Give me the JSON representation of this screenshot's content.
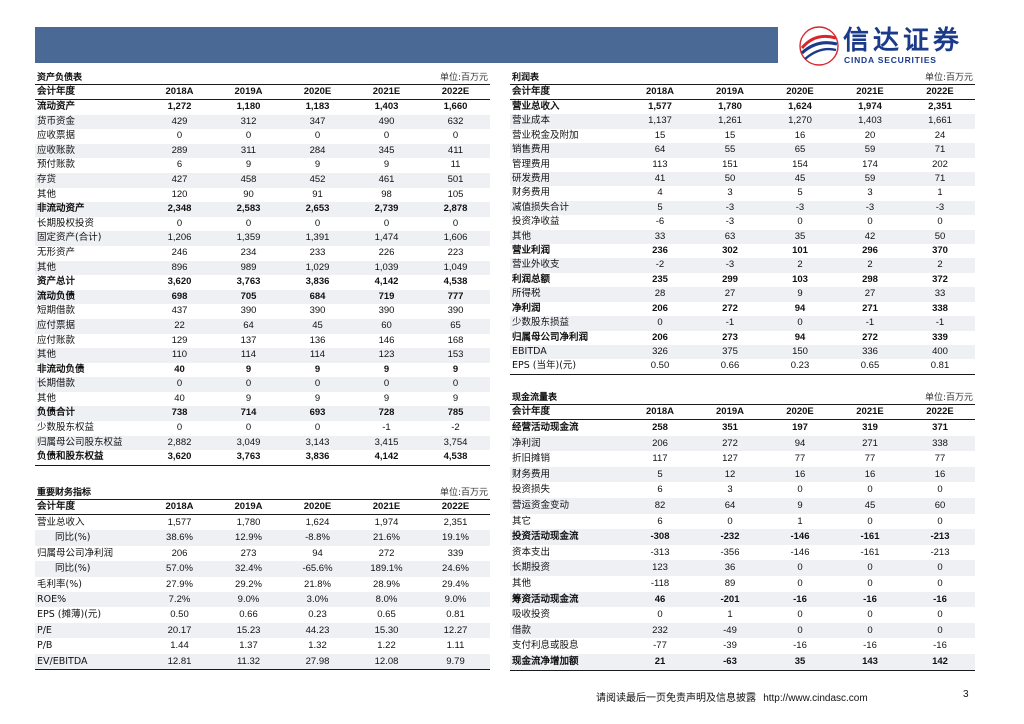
{
  "header": {
    "bar_color": "#4a6a95",
    "brand_color": "#1b3a8a",
    "logo_cn": "信达证券",
    "logo_en": "CINDA SECURITIES"
  },
  "balance_sheet": {
    "title": "资产负债表",
    "unit": "单位:百万元",
    "columns": [
      "会计年度",
      "2018A",
      "2019A",
      "2020E",
      "2021E",
      "2022E"
    ],
    "rows": [
      {
        "label": "流动资产",
        "values": [
          "1,272",
          "1,180",
          "1,183",
          "1,403",
          "1,660"
        ],
        "bold": true
      },
      {
        "label": "货币资金",
        "values": [
          "429",
          "312",
          "347",
          "490",
          "632"
        ]
      },
      {
        "label": "应收票据",
        "values": [
          "0",
          "0",
          "0",
          "0",
          "0"
        ]
      },
      {
        "label": "应收账款",
        "values": [
          "289",
          "311",
          "284",
          "345",
          "411"
        ]
      },
      {
        "label": "预付账款",
        "values": [
          "6",
          "9",
          "9",
          "9",
          "11"
        ]
      },
      {
        "label": "存货",
        "values": [
          "427",
          "458",
          "452",
          "461",
          "501"
        ]
      },
      {
        "label": "其他",
        "values": [
          "120",
          "90",
          "91",
          "98",
          "105"
        ]
      },
      {
        "label": "非流动资产",
        "values": [
          "2,348",
          "2,583",
          "2,653",
          "2,739",
          "2,878"
        ],
        "bold": true
      },
      {
        "label": "长期股权投资",
        "values": [
          "0",
          "0",
          "0",
          "0",
          "0"
        ]
      },
      {
        "label": "固定资产(合计)",
        "values": [
          "1,206",
          "1,359",
          "1,391",
          "1,474",
          "1,606"
        ]
      },
      {
        "label": "无形资产",
        "values": [
          "246",
          "234",
          "233",
          "226",
          "223"
        ]
      },
      {
        "label": "其他",
        "values": [
          "896",
          "989",
          "1,029",
          "1,039",
          "1,049"
        ]
      },
      {
        "label": "资产总计",
        "values": [
          "3,620",
          "3,763",
          "3,836",
          "4,142",
          "4,538"
        ],
        "bold": true
      },
      {
        "label": "流动负债",
        "values": [
          "698",
          "705",
          "684",
          "719",
          "777"
        ],
        "bold": true
      },
      {
        "label": "短期借款",
        "values": [
          "437",
          "390",
          "390",
          "390",
          "390"
        ]
      },
      {
        "label": "应付票据",
        "values": [
          "22",
          "64",
          "45",
          "60",
          "65"
        ]
      },
      {
        "label": "应付账款",
        "values": [
          "129",
          "137",
          "136",
          "146",
          "168"
        ]
      },
      {
        "label": "其他",
        "values": [
          "110",
          "114",
          "114",
          "123",
          "153"
        ]
      },
      {
        "label": "非流动负债",
        "values": [
          "40",
          "9",
          "9",
          "9",
          "9"
        ],
        "bold": true
      },
      {
        "label": "长期借款",
        "values": [
          "0",
          "0",
          "0",
          "0",
          "0"
        ]
      },
      {
        "label": "其他",
        "values": [
          "40",
          "9",
          "9",
          "9",
          "9"
        ]
      },
      {
        "label": "负债合计",
        "values": [
          "738",
          "714",
          "693",
          "728",
          "785"
        ],
        "bold": true
      },
      {
        "label": "少数股东权益",
        "values": [
          "0",
          "0",
          "0",
          "-1",
          "-2"
        ]
      },
      {
        "label": "归属母公司股东权益",
        "values": [
          "2,882",
          "3,049",
          "3,143",
          "3,415",
          "3,754"
        ]
      },
      {
        "label": "负债和股东权益",
        "values": [
          "3,620",
          "3,763",
          "3,836",
          "4,142",
          "4,538"
        ],
        "bold": true
      }
    ]
  },
  "key_metrics": {
    "title": "重要财务指标",
    "unit": "单位:百万元",
    "columns": [
      "会计年度",
      "2018A",
      "2019A",
      "2020E",
      "2021E",
      "2022E"
    ],
    "rows": [
      {
        "label": "营业总收入",
        "values": [
          "1,577",
          "1,780",
          "1,624",
          "1,974",
          "2,351"
        ]
      },
      {
        "label": "同比(%)",
        "values": [
          "38.6%",
          "12.9%",
          "-8.8%",
          "21.6%",
          "19.1%"
        ],
        "indent": true
      },
      {
        "label": "归属母公司净利润",
        "values": [
          "206",
          "273",
          "94",
          "272",
          "339"
        ]
      },
      {
        "label": "同比(%)",
        "values": [
          "57.0%",
          "32.4%",
          "-65.6%",
          "189.1%",
          "24.6%"
        ],
        "indent": true
      },
      {
        "label": "毛利率(%)",
        "values": [
          "27.9%",
          "29.2%",
          "21.8%",
          "28.9%",
          "29.4%"
        ]
      },
      {
        "label": "ROE%",
        "values": [
          "7.2%",
          "9.0%",
          "3.0%",
          "8.0%",
          "9.0%"
        ]
      },
      {
        "label": "EPS (摊薄)(元)",
        "values": [
          "0.50",
          "0.66",
          "0.23",
          "0.65",
          "0.81"
        ]
      },
      {
        "label": "P/E",
        "values": [
          "20.17",
          "15.23",
          "44.23",
          "15.30",
          "12.27"
        ]
      },
      {
        "label": "P/B",
        "values": [
          "1.44",
          "1.37",
          "1.32",
          "1.22",
          "1.11"
        ]
      },
      {
        "label": "EV/EBITDA",
        "values": [
          "12.81",
          "11.32",
          "27.98",
          "12.08",
          "9.79"
        ]
      }
    ]
  },
  "income_statement": {
    "title": "利润表",
    "unit": "单位:百万元",
    "columns": [
      "会计年度",
      "2018A",
      "2019A",
      "2020E",
      "2021E",
      "2022E"
    ],
    "rows": [
      {
        "label": "营业总收入",
        "values": [
          "1,577",
          "1,780",
          "1,624",
          "1,974",
          "2,351"
        ],
        "bold": true
      },
      {
        "label": "营业成本",
        "values": [
          "1,137",
          "1,261",
          "1,270",
          "1,403",
          "1,661"
        ]
      },
      {
        "label": "营业税金及附加",
        "values": [
          "15",
          "15",
          "16",
          "20",
          "24"
        ]
      },
      {
        "label": "销售费用",
        "values": [
          "64",
          "55",
          "65",
          "59",
          "71"
        ]
      },
      {
        "label": "管理费用",
        "values": [
          "113",
          "151",
          "154",
          "174",
          "202"
        ]
      },
      {
        "label": "研发费用",
        "values": [
          "41",
          "50",
          "45",
          "59",
          "71"
        ]
      },
      {
        "label": "财务费用",
        "values": [
          "4",
          "3",
          "5",
          "3",
          "1"
        ]
      },
      {
        "label": "减值损失合计",
        "values": [
          "5",
          "-3",
          "-3",
          "-3",
          "-3"
        ]
      },
      {
        "label": "投资净收益",
        "values": [
          "-6",
          "-3",
          "0",
          "0",
          "0"
        ]
      },
      {
        "label": "其他",
        "values": [
          "33",
          "63",
          "35",
          "42",
          "50"
        ]
      },
      {
        "label": "营业利润",
        "values": [
          "236",
          "302",
          "101",
          "296",
          "370"
        ],
        "bold": true
      },
      {
        "label": "营业外收支",
        "values": [
          "-2",
          "-3",
          "2",
          "2",
          "2"
        ]
      },
      {
        "label": "利润总额",
        "values": [
          "235",
          "299",
          "103",
          "298",
          "372"
        ],
        "bold": true
      },
      {
        "label": "所得税",
        "values": [
          "28",
          "27",
          "9",
          "27",
          "33"
        ]
      },
      {
        "label": "净利润",
        "values": [
          "206",
          "272",
          "94",
          "271",
          "338"
        ],
        "bold": true
      },
      {
        "label": "少数股东损益",
        "values": [
          "0",
          "-1",
          "0",
          "-1",
          "-1"
        ]
      },
      {
        "label": "归属母公司净利润",
        "values": [
          "206",
          "273",
          "94",
          "272",
          "339"
        ],
        "bold": true
      },
      {
        "label": "EBITDA",
        "values": [
          "326",
          "375",
          "150",
          "336",
          "400"
        ]
      },
      {
        "label": "EPS (当年)(元)",
        "values": [
          "0.50",
          "0.66",
          "0.23",
          "0.65",
          "0.81"
        ]
      }
    ]
  },
  "cash_flow": {
    "title": "现金流量表",
    "unit": "单位:百万元",
    "columns": [
      "会计年度",
      "2018A",
      "2019A",
      "2020E",
      "2021E",
      "2022E"
    ],
    "rows": [
      {
        "label": "经营活动现金流",
        "values": [
          "258",
          "351",
          "197",
          "319",
          "371"
        ],
        "bold": true
      },
      {
        "label": "净利润",
        "values": [
          "206",
          "272",
          "94",
          "271",
          "338"
        ]
      },
      {
        "label": "折旧摊销",
        "values": [
          "117",
          "127",
          "77",
          "77",
          "77"
        ]
      },
      {
        "label": "财务费用",
        "values": [
          "5",
          "12",
          "16",
          "16",
          "16"
        ]
      },
      {
        "label": "投资损失",
        "values": [
          "6",
          "3",
          "0",
          "0",
          "0"
        ]
      },
      {
        "label": "营运资金变动",
        "values": [
          "82",
          "64",
          "9",
          "45",
          "60"
        ]
      },
      {
        "label": "其它",
        "values": [
          "6",
          "0",
          "1",
          "0",
          "0"
        ]
      },
      {
        "label": "投资活动现金流",
        "values": [
          "-308",
          "-232",
          "-146",
          "-161",
          "-213"
        ],
        "bold": true
      },
      {
        "label": "资本支出",
        "values": [
          "-313",
          "-356",
          "-146",
          "-161",
          "-213"
        ]
      },
      {
        "label": "长期投资",
        "values": [
          "123",
          "36",
          "0",
          "0",
          "0"
        ]
      },
      {
        "label": "其他",
        "values": [
          "-118",
          "89",
          "0",
          "0",
          "0"
        ]
      },
      {
        "label": "筹资活动现金流",
        "values": [
          "46",
          "-201",
          "-16",
          "-16",
          "-16"
        ],
        "bold": true
      },
      {
        "label": "吸收投资",
        "values": [
          "0",
          "1",
          "0",
          "0",
          "0"
        ]
      },
      {
        "label": "借款",
        "values": [
          "232",
          "-49",
          "0",
          "0",
          "0"
        ]
      },
      {
        "label": "支付利息或股息",
        "values": [
          "-77",
          "-39",
          "-16",
          "-16",
          "-16"
        ]
      },
      {
        "label": "现金流净增加额",
        "values": [
          "21",
          "-63",
          "35",
          "143",
          "142"
        ],
        "bold": true
      }
    ]
  },
  "footer": {
    "disclaimer": "请阅读最后一页免责声明及信息披露",
    "url": "http://www.cindasc.com",
    "page": "3"
  }
}
